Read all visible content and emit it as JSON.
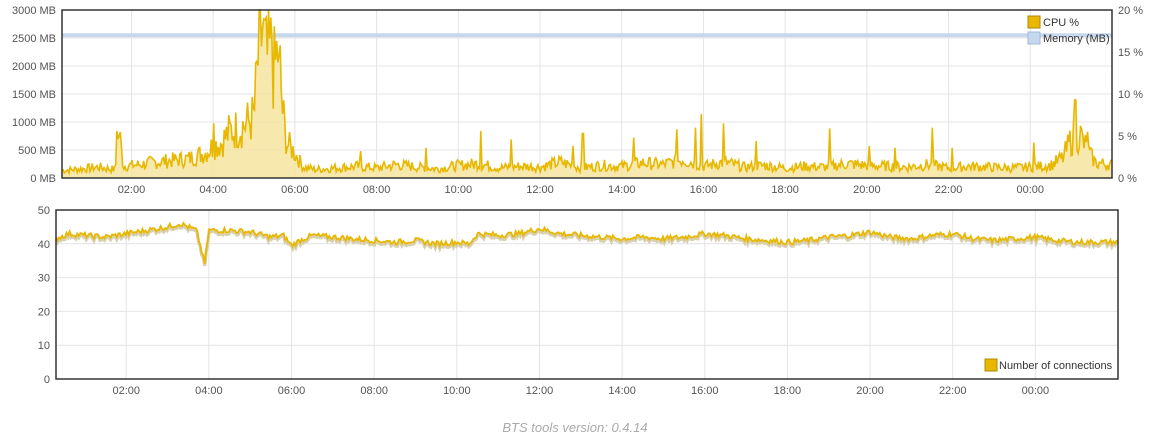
{
  "footer": {
    "text": "BTS tools version: 0.4.14"
  },
  "colors": {
    "cpu": "#e8b800",
    "cpu_fill": "#f5e29a",
    "memory": "#c6d8ee",
    "connections": "#e8b800",
    "grid": "#e4e4e4",
    "frame": "#333333"
  },
  "chart_data": [
    {
      "type": "line",
      "x_unit": "hours since 00:00 (time of day, wraps past 24:00)",
      "xlim": [
        0.3,
        26.0
      ],
      "x_ticks": [
        {
          "x": 2,
          "label": "02:00"
        },
        {
          "x": 4,
          "label": "04:00"
        },
        {
          "x": 6,
          "label": "06:00"
        },
        {
          "x": 8,
          "label": "08:00"
        },
        {
          "x": 10,
          "label": "10:00"
        },
        {
          "x": 12,
          "label": "12:00"
        },
        {
          "x": 14,
          "label": "14:00"
        },
        {
          "x": 16,
          "label": "16:00"
        },
        {
          "x": 18,
          "label": "18:00"
        },
        {
          "x": 20,
          "label": "20:00"
        },
        {
          "x": 22,
          "label": "22:00"
        },
        {
          "x": 24,
          "label": "00:00"
        }
      ],
      "y_left": {
        "min": 0,
        "max": 3000,
        "ticks": [
          "0 MB",
          "500 MB",
          "1000 MB",
          "1500 MB",
          "2000 MB",
          "2500 MB",
          "3000 MB"
        ]
      },
      "y_right": {
        "min": 0,
        "max": 20,
        "ticks": [
          "0 %",
          "5 %",
          "10 %",
          "15 %",
          "20 %"
        ]
      },
      "legend": {
        "position": "top-right",
        "items": [
          "CPU %",
          "Memory (MB)"
        ]
      },
      "grid": true,
      "series": [
        {
          "name": "Memory (MB)",
          "axis": "left",
          "x": [
            0.3,
            26.0
          ],
          "y": [
            2550,
            2550
          ]
        },
        {
          "name": "CPU %",
          "axis": "right",
          "x": [
            0.3,
            0.8,
            1.2,
            1.6,
            1.7,
            1.8,
            2.2,
            2.6,
            3.0,
            3.4,
            3.8,
            4.0,
            4.2,
            4.4,
            4.6,
            4.8,
            5.0,
            5.1,
            5.2,
            5.3,
            5.4,
            5.5,
            5.6,
            5.7,
            5.8,
            5.9,
            6.0,
            6.2,
            6.5,
            7.0,
            7.5,
            8.0,
            8.5,
            9.0,
            9.5,
            10.0,
            10.5,
            11.0,
            11.5,
            12.0,
            12.5,
            13.0,
            13.5,
            14.0,
            14.5,
            15.0,
            15.5,
            16.0,
            16.5,
            17.0,
            17.5,
            18.0,
            18.5,
            19.0,
            19.5,
            20.0,
            20.5,
            21.0,
            21.5,
            22.0,
            22.5,
            23.0,
            23.5,
            24.0,
            24.5,
            24.8,
            25.0,
            25.2,
            25.4,
            25.6,
            26.0
          ],
          "y": [
            0.9,
            1.1,
            1.3,
            1.0,
            5.6,
            1.4,
            1.6,
            1.9,
            2.1,
            2.3,
            3.0,
            3.8,
            4.2,
            5.5,
            5.9,
            6.4,
            7.3,
            14.1,
            17.5,
            13.8,
            15.0,
            12.6,
            15.8,
            7.8,
            4.2,
            3.6,
            3.0,
            1.3,
            1.0,
            1.2,
            1.4,
            1.2,
            1.6,
            1.3,
            1.1,
            1.5,
            1.7,
            1.2,
            1.4,
            1.3,
            1.9,
            1.2,
            1.5,
            1.4,
            1.8,
            1.6,
            2.2,
            1.4,
            1.9,
            1.3,
            1.5,
            1.2,
            1.4,
            1.3,
            1.7,
            1.5,
            1.4,
            1.3,
            1.6,
            1.2,
            1.4,
            1.3,
            1.2,
            1.3,
            1.5,
            2.4,
            4.6,
            5.3,
            3.2,
            1.8,
            1.6
          ],
          "spikes": [
            {
              "x": 1.65,
              "y": 5.6
            },
            {
              "x": 4.0,
              "y": 6.5
            },
            {
              "x": 5.2,
              "y": 18.0
            },
            {
              "x": 5.45,
              "y": 16.3
            },
            {
              "x": 5.62,
              "y": 14.6
            },
            {
              "x": 7.6,
              "y": 3.2
            },
            {
              "x": 9.2,
              "y": 3.6
            },
            {
              "x": 10.55,
              "y": 5.6
            },
            {
              "x": 11.3,
              "y": 4.6
            },
            {
              "x": 12.8,
              "y": 3.8
            },
            {
              "x": 13.05,
              "y": 5.3
            },
            {
              "x": 14.3,
              "y": 4.8
            },
            {
              "x": 15.35,
              "y": 5.8
            },
            {
              "x": 15.8,
              "y": 6.0
            },
            {
              "x": 15.95,
              "y": 7.6
            },
            {
              "x": 16.5,
              "y": 6.5
            },
            {
              "x": 17.3,
              "y": 4.4
            },
            {
              "x": 19.1,
              "y": 5.9
            },
            {
              "x": 20.05,
              "y": 3.8
            },
            {
              "x": 20.7,
              "y": 3.6
            },
            {
              "x": 21.6,
              "y": 6.0
            },
            {
              "x": 22.1,
              "y": 3.6
            },
            {
              "x": 24.1,
              "y": 4.2
            },
            {
              "x": 25.1,
              "y": 9.3
            },
            {
              "x": 25.4,
              "y": 5.5
            }
          ]
        }
      ]
    },
    {
      "type": "line",
      "x_unit": "hours since 00:00 (time of day, wraps past 24:00)",
      "xlim": [
        0.3,
        26.0
      ],
      "x_ticks": [
        {
          "x": 2,
          "label": "02:00"
        },
        {
          "x": 4,
          "label": "04:00"
        },
        {
          "x": 6,
          "label": "06:00"
        },
        {
          "x": 8,
          "label": "08:00"
        },
        {
          "x": 10,
          "label": "10:00"
        },
        {
          "x": 12,
          "label": "12:00"
        },
        {
          "x": 14,
          "label": "14:00"
        },
        {
          "x": 16,
          "label": "16:00"
        },
        {
          "x": 18,
          "label": "18:00"
        },
        {
          "x": 20,
          "label": "20:00"
        },
        {
          "x": 22,
          "label": "22:00"
        },
        {
          "x": 24,
          "label": "00:00"
        }
      ],
      "y_left": {
        "min": 0,
        "max": 50,
        "ticks": [
          "0",
          "10",
          "20",
          "30",
          "40",
          "50"
        ]
      },
      "legend": {
        "position": "bottom-right",
        "items": [
          "Number of connections"
        ]
      },
      "grid": true,
      "series": [
        {
          "name": "Number of connections",
          "axis": "left",
          "x": [
            0.3,
            0.6,
            1.0,
            1.5,
            2.0,
            2.5,
            3.0,
            3.3,
            3.5,
            3.7,
            3.8,
            3.9,
            4.0,
            4.5,
            5.0,
            5.5,
            5.8,
            6.0,
            6.2,
            6.5,
            7.0,
            7.5,
            8.0,
            8.5,
            9.0,
            9.5,
            10.0,
            10.3,
            10.5,
            11.0,
            11.5,
            12.0,
            12.5,
            13.0,
            13.5,
            14.0,
            14.5,
            15.0,
            15.5,
            16.0,
            16.5,
            17.0,
            17.5,
            18.0,
            18.5,
            19.0,
            19.5,
            20.0,
            20.5,
            21.0,
            21.5,
            22.0,
            22.5,
            23.0,
            23.5,
            24.0,
            24.5,
            25.0,
            25.5,
            26.0
          ],
          "y": [
            41.5,
            43,
            42.5,
            42,
            43,
            44,
            45,
            46,
            45,
            44,
            39,
            34,
            44,
            44,
            43.5,
            42,
            42.5,
            39.5,
            41,
            42.5,
            42,
            41.5,
            41,
            40.5,
            41,
            40,
            40.5,
            40,
            43,
            42.5,
            43,
            44.5,
            43,
            42.5,
            42,
            41.5,
            42,
            41.5,
            42,
            43,
            42.5,
            41.5,
            41,
            40.5,
            41,
            42,
            42.5,
            43.5,
            42,
            41.5,
            42.5,
            43,
            41.5,
            41,
            41.5,
            42,
            41,
            40.5,
            40.5,
            40.5
          ]
        }
      ]
    }
  ]
}
